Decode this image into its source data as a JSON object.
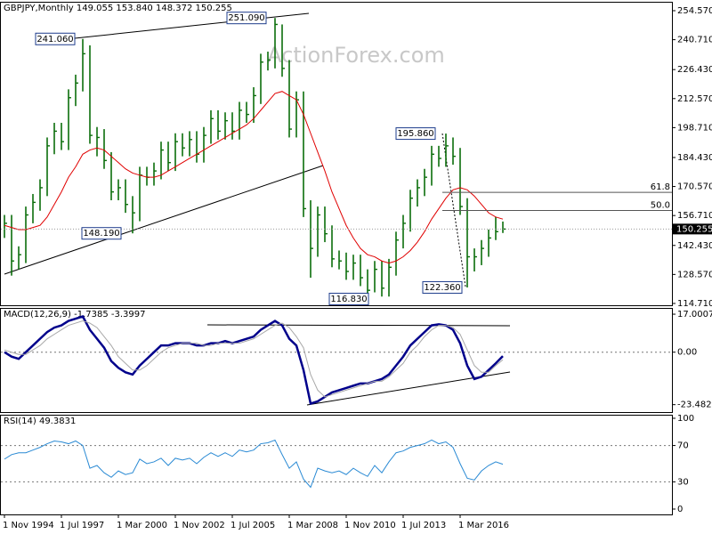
{
  "chart_data": [
    {
      "type": "ohlc",
      "title": "GBPJPY,Monthly 149.055 153.840 148.372 150.255",
      "watermark": "ActionForex.com",
      "ohlc": {
        "color": "#0b6e0b",
        "high": [
          157,
          157,
          142,
          161,
          167,
          174,
          194,
          201,
          201,
          217,
          224,
          241.06,
          238,
          199,
          198,
          187,
          174,
          174,
          166,
          180,
          180,
          182,
          192,
          192,
          196,
          196,
          197,
          197,
          199,
          207,
          207,
          206,
          206,
          211,
          211,
          218,
          234,
          235,
          251.09,
          248,
          231,
          216,
          216,
          164,
          161,
          161,
          152,
          140,
          139,
          138,
          138,
          131,
          135,
          135,
          136,
          149,
          157,
          169,
          174,
          179,
          190,
          190,
          195.86,
          194,
          189,
          165,
          141,
          145,
          150,
          156,
          153.84
        ],
        "low": [
          146,
          128,
          131,
          134,
          153,
          159,
          166,
          186,
          188,
          188,
          209,
          216,
          191,
          185,
          179,
          164,
          164,
          158,
          148.19,
          154,
          171,
          171,
          174,
          178,
          178,
          185,
          185,
          182,
          182,
          191,
          193,
          193,
          193,
          193,
          201,
          201,
          210,
          226,
          227,
          223,
          194,
          194,
          156,
          127,
          137,
          144,
          132,
          131,
          126,
          126,
          123,
          116.83,
          120,
          118,
          118,
          128,
          141,
          149,
          161,
          166,
          171,
          180,
          180,
          181,
          157,
          122.36,
          130,
          133,
          137,
          145,
          148.372
        ],
        "close": [
          153,
          135,
          138,
          157,
          163,
          170,
          190,
          197,
          192,
          213,
          220,
          234,
          195,
          194,
          183,
          168,
          170,
          162,
          158,
          176,
          175,
          178,
          188,
          182,
          192,
          189,
          193,
          186,
          195,
          203,
          197,
          202,
          197,
          207,
          205,
          214,
          230,
          231,
          248,
          227,
          198,
          212,
          160,
          141,
          157,
          148,
          136,
          135,
          130,
          134,
          127,
          121,
          131,
          122,
          132,
          145,
          153,
          165,
          170,
          175,
          186,
          184,
          190,
          185,
          161,
          137,
          137,
          141,
          146,
          149,
          150.255
        ]
      },
      "series": [
        {
          "color": "#e00000",
          "values": [
            152,
            151,
            150,
            150,
            151,
            152,
            156,
            162,
            168,
            175,
            180,
            186,
            188,
            189,
            188,
            185,
            182,
            179,
            177,
            176,
            175,
            175,
            176,
            178,
            180,
            182,
            184,
            186,
            188,
            190,
            192,
            194,
            196,
            198,
            200,
            203,
            207,
            211,
            215,
            216,
            214,
            212,
            205,
            196,
            187,
            178,
            168,
            160,
            152,
            146,
            141,
            138,
            137,
            135,
            134,
            135,
            137,
            140,
            144,
            149,
            155,
            160,
            165,
            169,
            170,
            169,
            166,
            162,
            158,
            156,
            155
          ]
        }
      ],
      "ylim": [
        113.84,
        258.82
      ],
      "yticks": [
        {
          "value": 254.57,
          "label": "254.570"
        },
        {
          "value": 240.71,
          "label": "240.710"
        },
        {
          "value": 226.43,
          "label": "226.430"
        },
        {
          "value": 212.57,
          "label": "212.570"
        },
        {
          "value": 198.71,
          "label": "198.710"
        },
        {
          "value": 184.43,
          "label": "184.430"
        },
        {
          "value": 170.57,
          "label": "170.570"
        },
        {
          "value": 156.71,
          "label": "156.710"
        },
        {
          "value": 142.43,
          "label": "142.430"
        },
        {
          "value": 128.57,
          "label": "128.570"
        },
        {
          "value": 114.71,
          "label": "114.710"
        }
      ],
      "last_price": 150.255,
      "annotations": [
        {
          "value": 241.06,
          "label": "241.060"
        },
        {
          "value": 251.09,
          "label": "251.090"
        },
        {
          "value": 148.19,
          "label": "148.190"
        },
        {
          "value": 116.83,
          "label": "116.830"
        },
        {
          "value": 195.86,
          "label": "195.860"
        },
        {
          "value": 122.36,
          "label": "122.360"
        }
      ],
      "fib_levels": [
        61.8,
        {
          "value": 50,
          "label": "50.0"
        }
      ]
    },
    {
      "type": "line",
      "title": "MACD(12,26,9) -1.7385 -3.3997",
      "series": [
        {
          "color": "#00008b",
          "values": [
            0,
            -2,
            -3,
            0,
            3,
            6,
            9,
            11,
            12,
            14,
            15,
            16,
            10,
            6,
            2,
            -4,
            -7,
            -9,
            -10,
            -6,
            -3,
            0,
            3,
            3,
            4,
            4,
            4,
            3,
            3,
            4,
            4,
            5,
            4,
            5,
            6,
            7,
            10,
            12,
            14,
            12,
            6,
            3,
            -8,
            -23,
            -22,
            -20,
            -18,
            -17,
            -16,
            -15,
            -14,
            -14,
            -13,
            -12,
            -10,
            -6,
            -2,
            3,
            6,
            9,
            12,
            12.5,
            12,
            10,
            4,
            -6,
            -12,
            -11,
            -8,
            -5,
            -1.7385
          ]
        },
        {
          "color": "#a8a8a8",
          "values": [
            1,
            0,
            -1,
            -1,
            1,
            3,
            6,
            8,
            10,
            12,
            13,
            14,
            13,
            11,
            7,
            3,
            -2,
            -5,
            -8,
            -8,
            -6,
            -3,
            0,
            2,
            3,
            4,
            4,
            4,
            3,
            3,
            4,
            4,
            4,
            4,
            5,
            6,
            8,
            10,
            12,
            13,
            11,
            7,
            2,
            -10,
            -17,
            -20,
            -19,
            -18,
            -17,
            -16,
            -15,
            -14,
            -13,
            -13,
            -11,
            -8,
            -5,
            0,
            3,
            7,
            10,
            12,
            12,
            11,
            8,
            1,
            -6,
            -9,
            -9,
            -6,
            -3.3997
          ]
        }
      ],
      "ylim": [
        -26.8,
        19.8
      ],
      "yticks": [
        17.0007,
        {
          "value": 0,
          "label": "0.00"
        },
        -23.4823
      ],
      "levels": [
        0
      ]
    },
    {
      "type": "line",
      "title": "RSI(14) 49.3831",
      "categories": [
        "1 Nov 1994",
        null,
        null,
        null,
        null,
        null,
        null,
        null,
        "1 Jul 1997",
        null,
        null,
        null,
        null,
        null,
        null,
        null,
        "1 Mar 2000",
        null,
        null,
        null,
        null,
        null,
        null,
        null,
        "1 Nov 2002",
        null,
        null,
        null,
        null,
        null,
        null,
        null,
        "1 Jul 2005",
        null,
        null,
        null,
        null,
        null,
        null,
        null,
        "1 Mar 2008",
        null,
        null,
        null,
        null,
        null,
        null,
        null,
        "1 Nov 2010",
        null,
        null,
        null,
        null,
        null,
        null,
        null,
        "1 Jul 2013",
        null,
        null,
        null,
        null,
        null,
        null,
        null,
        "1 Mar 2016",
        null,
        null,
        null,
        null,
        null,
        null
      ],
      "series": [
        {
          "color": "#2a8ad4",
          "values": [
            55,
            60,
            62,
            62,
            65,
            68,
            72,
            75,
            74,
            72,
            75,
            70,
            45,
            48,
            40,
            35,
            42,
            38,
            40,
            55,
            50,
            52,
            56,
            48,
            56,
            54,
            56,
            50,
            57,
            62,
            58,
            62,
            58,
            65,
            63,
            65,
            72,
            73,
            76,
            60,
            45,
            52,
            33,
            24,
            45,
            42,
            40,
            42,
            38,
            45,
            40,
            36,
            48,
            40,
            52,
            62,
            64,
            68,
            70,
            72,
            76,
            72,
            74,
            68,
            50,
            34,
            32,
            42,
            48,
            52,
            49.3831
          ]
        }
      ],
      "ylim": [
        -5.9,
        103.9
      ],
      "yticks": [
        100,
        70,
        30,
        0
      ],
      "levels": [
        70,
        30
      ]
    }
  ]
}
